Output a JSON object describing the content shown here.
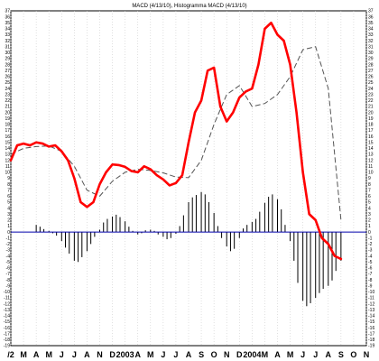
{
  "chart_data": {
    "type": "line",
    "title": "MACD (4/13/10), Histogramma MACD (4/13/10)",
    "xlabel": "",
    "ylabel": "",
    "ylim": [
      -19,
      37
    ],
    "grid": true,
    "x_tick_labels": [
      "/2",
      "M",
      "A",
      "M",
      "J",
      "J",
      "A",
      "N",
      "D",
      "2003",
      "A",
      "M",
      "J",
      "J",
      "A",
      "S",
      "O",
      "N",
      "D",
      "2004",
      "M",
      "A",
      "M",
      "J",
      "J",
      "A",
      "S",
      "O",
      "N"
    ],
    "y_ticks": [
      37,
      36,
      35,
      34,
      33,
      32,
      31,
      30,
      29,
      28,
      27,
      26,
      25,
      24,
      23,
      22,
      21,
      20,
      19,
      18,
      17,
      16,
      15,
      14,
      13,
      12,
      11,
      10,
      9,
      8,
      7,
      6,
      5,
      4,
      3,
      2,
      1,
      0,
      -1,
      -2,
      -3,
      -4,
      -5,
      -6,
      -7,
      -8,
      -9,
      -10,
      -11,
      -12,
      -13,
      -14,
      -15,
      -16,
      -17,
      -18,
      -19
    ],
    "x_range": [
      0,
      28
    ],
    "colors": {
      "macd": "#ff0000",
      "signal": "#555555",
      "histogram": "#000000",
      "zero_line": "#0000aa",
      "grid": "#cccccc"
    },
    "series": [
      {
        "style": "solid-red",
        "x": [
          0,
          0.5,
          1,
          1.5,
          2,
          2.5,
          3,
          3.5,
          4,
          4.5,
          5,
          5.5,
          6,
          6.5,
          7,
          7.5,
          8,
          8.5,
          9,
          9.5,
          10,
          10.5,
          11,
          11.5,
          12,
          12.5,
          13,
          13.5,
          14,
          14.5,
          15,
          15.5,
          16,
          16.5,
          17,
          17.5,
          18,
          18.5,
          19,
          19.5,
          20,
          20.5,
          21,
          21.5,
          22,
          22.5,
          23,
          23.5,
          24,
          24.5,
          25,
          25.5,
          26
        ],
        "values": [
          12,
          14.5,
          14.8,
          14.5,
          15,
          14.8,
          14.3,
          14.5,
          13.5,
          12,
          9,
          5,
          4.2,
          5,
          8,
          10,
          11.3,
          11.2,
          10.9,
          10.2,
          10,
          11,
          10.5,
          9.5,
          8.8,
          7.8,
          8.2,
          9.5,
          15,
          20,
          22,
          27,
          27.5,
          21,
          18.5,
          20,
          22.5,
          23.5,
          24,
          28,
          34,
          35,
          33,
          32,
          28,
          20,
          10,
          3,
          2,
          -1,
          -2,
          -4,
          -4.5
        ]
      },
      {
        "style": "dashed-gray",
        "x": [
          0,
          1,
          2,
          3,
          4,
          5,
          6,
          7,
          8,
          9,
          10,
          11,
          12,
          13,
          14,
          15,
          16,
          17,
          18,
          19,
          20,
          21,
          22,
          23,
          24,
          25,
          26
        ],
        "values": [
          13,
          14,
          14.3,
          14.4,
          13.5,
          11,
          7,
          6,
          8.5,
          10,
          10.5,
          10.3,
          9.9,
          9.2,
          9.1,
          12,
          18,
          23,
          24.5,
          21,
          21.5,
          23,
          26,
          30.5,
          31,
          24,
          2
        ]
      }
    ],
    "histogram": {
      "x": [
        2,
        2.3,
        2.6,
        3,
        3.3,
        3.6,
        4,
        4.3,
        4.6,
        5,
        5.3,
        5.6,
        6,
        6.3,
        6.6,
        7,
        7.3,
        7.6,
        8,
        8.3,
        8.6,
        9,
        9.3,
        9.6,
        10,
        10.3,
        10.6,
        11,
        11.3,
        11.6,
        12,
        12.3,
        12.6,
        13,
        13.3,
        13.6,
        14,
        14.3,
        14.6,
        15,
        15.3,
        15.6,
        16,
        16.3,
        16.6,
        17,
        17.3,
        17.6,
        18,
        18.3,
        18.6,
        19,
        19.3,
        19.6,
        20,
        20.3,
        20.6,
        21,
        21.3,
        21.6,
        22,
        22.3,
        22.6,
        23,
        23.3,
        23.6,
        24,
        24.3,
        24.6,
        25,
        25.3,
        25.6,
        26
      ],
      "values": [
        1.2,
        0.9,
        0.5,
        0.2,
        -0.2,
        -0.6,
        -1.5,
        -2.6,
        -3.6,
        -4.8,
        -5,
        -4.2,
        -3.2,
        -2,
        -0.8,
        0.4,
        1.6,
        2.2,
        2.6,
        2.9,
        2.5,
        1.8,
        0.9,
        0.2,
        -0.4,
        -0.2,
        0.3,
        0.4,
        0.2,
        -0.4,
        -0.8,
        -1.2,
        -1,
        -0.3,
        1,
        2.8,
        5,
        5.8,
        6.2,
        6.7,
        6.3,
        5,
        3.2,
        1,
        -1,
        -2.4,
        -3.2,
        -2.8,
        -1,
        0.6,
        1.2,
        1.7,
        2.2,
        3.4,
        4.9,
        5.9,
        6.3,
        5.5,
        3.8,
        1.2,
        -1.5,
        -4.8,
        -8.5,
        -11.5,
        -12.4,
        -11.9,
        -11,
        -10.2,
        -9.5,
        -9,
        -8.1,
        -6.5,
        -4.8
      ]
    }
  }
}
